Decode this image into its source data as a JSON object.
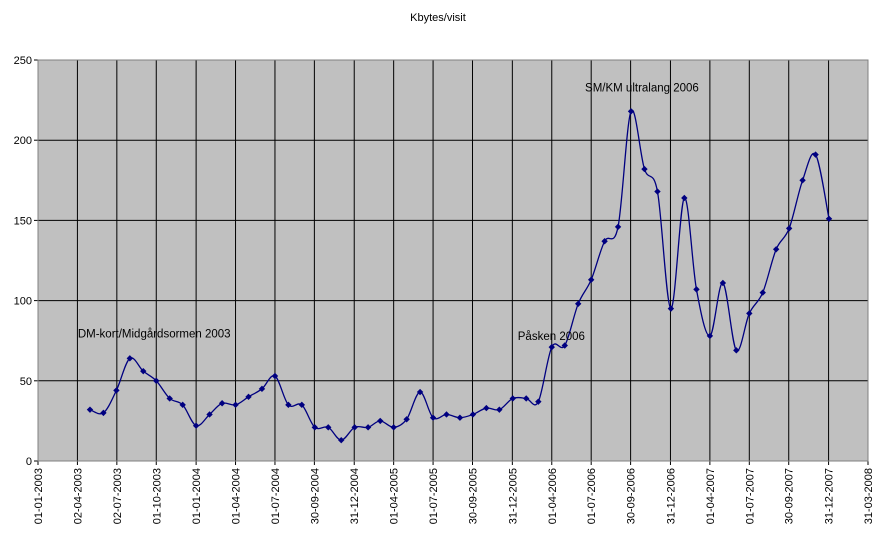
{
  "chart_data": {
    "type": "line",
    "title": "Kbytes/visit",
    "xlabel": "",
    "ylabel": "",
    "ylim": [
      0,
      250
    ],
    "yticks": [
      0,
      50,
      100,
      150,
      200,
      250
    ],
    "xlim": [
      "2003-01-01",
      "2008-03-31"
    ],
    "xticks": [
      "2003-01-01",
      "2003-04-02",
      "2003-07-02",
      "2003-10-01",
      "2004-01-01",
      "2004-04-01",
      "2004-07-01",
      "2004-09-30",
      "2004-12-31",
      "2005-04-01",
      "2005-07-01",
      "2005-09-30",
      "2005-12-31",
      "2006-04-01",
      "2006-07-01",
      "2006-09-30",
      "2006-12-31",
      "2007-04-01",
      "2007-07-01",
      "2007-09-30",
      "2007-12-31",
      "2008-03-31"
    ],
    "xtick_labels": [
      "01-01-2003",
      "02-04-2003",
      "02-07-2003",
      "01-10-2003",
      "01-01-2004",
      "01-04-2004",
      "01-07-2004",
      "30-09-2004",
      "31-12-2004",
      "01-04-2005",
      "01-07-2005",
      "30-09-2005",
      "31-12-2005",
      "01-04-2006",
      "01-07-2006",
      "30-09-2006",
      "31-12-2006",
      "01-04-2007",
      "01-07-2007",
      "30-09-2007",
      "31-12-2007",
      "31-03-2008"
    ],
    "grid": true,
    "plot_background": "#c0c0c0",
    "line_color": "#000080",
    "marker": "diamond",
    "legend": "none",
    "series": [
      {
        "x": [
          "2003-05-01",
          "2003-06-01",
          "2003-07-01",
          "2003-08-01",
          "2003-09-01",
          "2003-10-01",
          "2003-11-01",
          "2003-12-01",
          "2004-01-01",
          "2004-02-01",
          "2004-03-01",
          "2004-04-01",
          "2004-05-01",
          "2004-06-01",
          "2004-07-01",
          "2004-08-01",
          "2004-09-01",
          "2004-10-01",
          "2004-11-01",
          "2004-12-01",
          "2005-01-01",
          "2005-02-01",
          "2005-03-01",
          "2005-04-01",
          "2005-05-01",
          "2005-06-01",
          "2005-07-01",
          "2005-08-01",
          "2005-09-01",
          "2005-10-01",
          "2005-11-01",
          "2005-12-01",
          "2006-01-01",
          "2006-02-01",
          "2006-03-01",
          "2006-04-01",
          "2006-05-01",
          "2006-06-01",
          "2006-07-01",
          "2006-08-01",
          "2006-09-01",
          "2006-10-01",
          "2006-11-01",
          "2006-12-01",
          "2007-01-01",
          "2007-02-01",
          "2007-03-01",
          "2007-04-01",
          "2007-05-01",
          "2007-06-01",
          "2007-07-01",
          "2007-08-01",
          "2007-09-01",
          "2007-10-01",
          "2007-11-01",
          "2007-12-01",
          "2008-01-01"
        ],
        "values": [
          32,
          30,
          44,
          64,
          56,
          50,
          39,
          35,
          22,
          29,
          36,
          35,
          40,
          45,
          53,
          35,
          35,
          21,
          21,
          13,
          21,
          21,
          25,
          21,
          26,
          43,
          27,
          29,
          27,
          29,
          33,
          32,
          39,
          39,
          37,
          71,
          72,
          98,
          113,
          137,
          146,
          218,
          182,
          168,
          95,
          164,
          107,
          78,
          111,
          69,
          92,
          105,
          132,
          145,
          175,
          191,
          151
        ]
      }
    ],
    "annotations": [
      {
        "text": "DM-kort/Midgårdsormen 2003",
        "x": "2003-08-01",
        "y": 64
      },
      {
        "text": "Påsken 2006",
        "x": "2006-04-01",
        "y": 71
      },
      {
        "text": "SM/KM ultralang 2006",
        "x": "2006-10-01",
        "y": 218
      }
    ]
  }
}
